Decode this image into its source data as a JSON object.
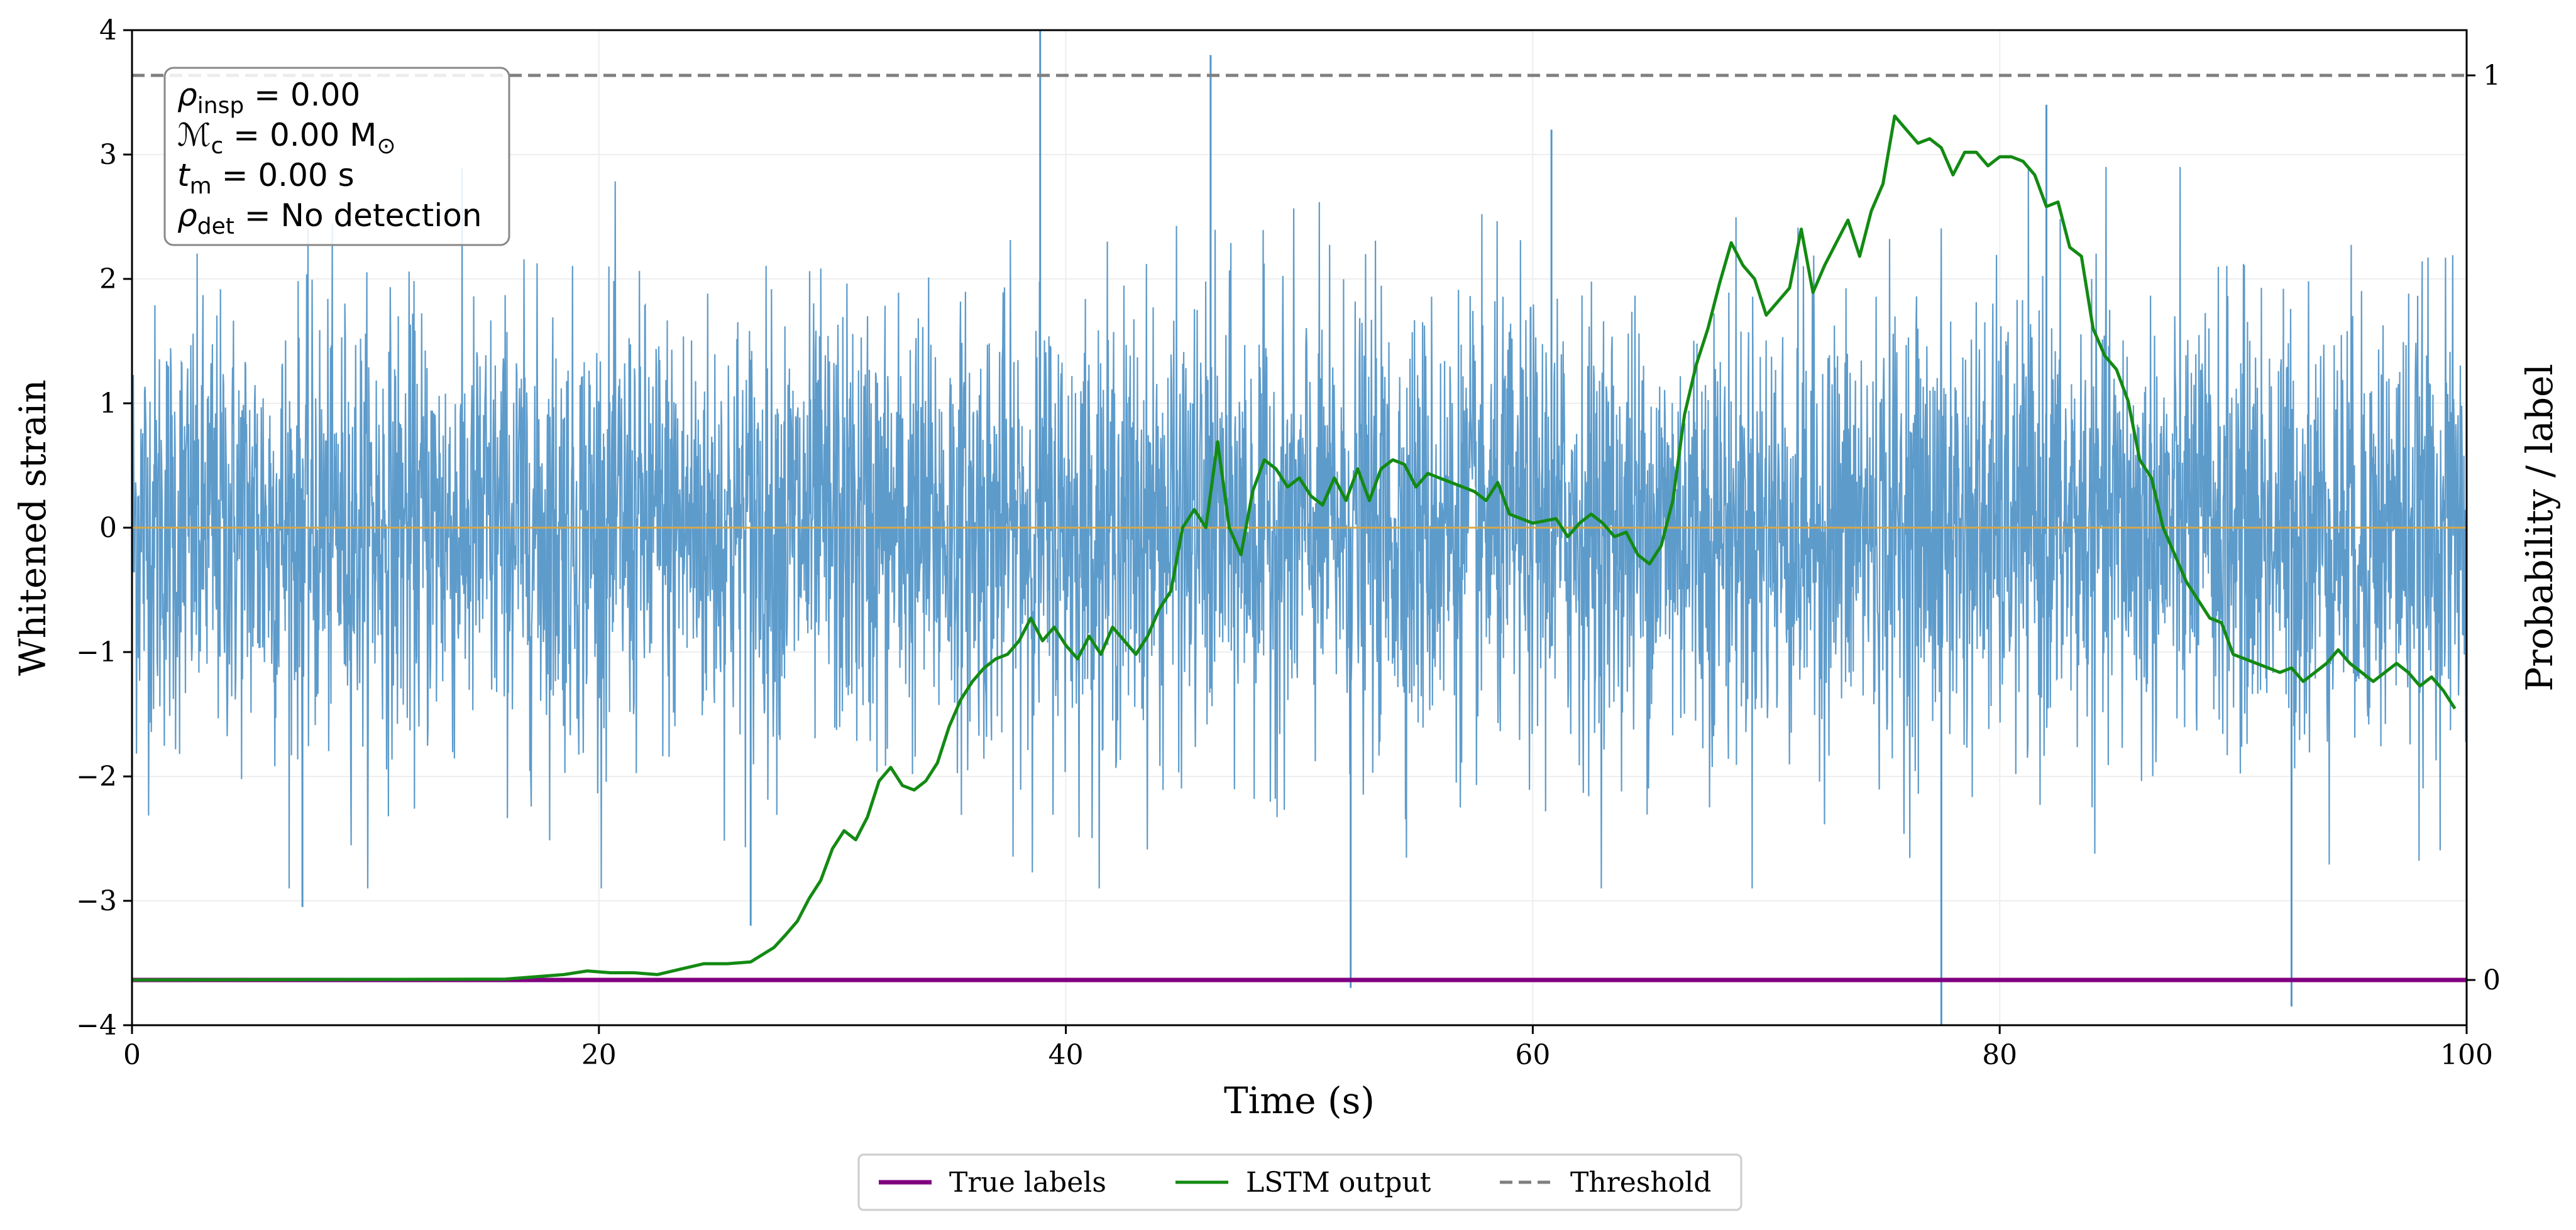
{
  "chart_data": {
    "type": "line",
    "x_axis": {
      "label": "Time (s)",
      "range": [
        0,
        100
      ],
      "ticks": [
        0,
        20,
        40,
        60,
        80,
        100
      ]
    },
    "y_axis_left": {
      "label": "Whitened strain",
      "range": [
        -4,
        4
      ],
      "ticks": [
        -4,
        -3,
        -2,
        -1,
        0,
        1,
        2,
        3,
        4
      ],
      "tick_labels": [
        "−4",
        "−3",
        "−2",
        "−1",
        "0",
        "1",
        "2",
        "3",
        "4"
      ]
    },
    "y_axis_right": {
      "label": "Probability / label",
      "range": [
        -0.05,
        1.05
      ],
      "ticks": [
        0,
        1
      ],
      "tick_labels": [
        "0",
        "1"
      ]
    },
    "strain": {
      "name": "Whitened strain",
      "color": "#5496c8",
      "typical_amplitude": 2.1,
      "spikes": [
        {
          "x": 38.9,
          "y": 4.0
        },
        {
          "x": 46.2,
          "y": 3.8
        },
        {
          "x": 52.2,
          "y": -3.7
        },
        {
          "x": 77.5,
          "y": -4.0
        },
        {
          "x": 92.5,
          "y": -3.85
        },
        {
          "x": 26.5,
          "y": -3.2
        },
        {
          "x": 7.3,
          "y": -3.05
        },
        {
          "x": 82.0,
          "y": 3.4
        },
        {
          "x": 60.8,
          "y": 3.2
        }
      ]
    },
    "zero_line": {
      "y": 0,
      "color": "#d6a84a"
    },
    "series": [
      {
        "name": "True labels",
        "color": "#800080",
        "axis": "right",
        "x": [
          0,
          100
        ],
        "values": [
          0,
          0
        ]
      },
      {
        "name": "LSTM output",
        "color": "#138a13",
        "axis": "right",
        "x": [
          0,
          16,
          17.5,
          18.5,
          19.5,
          20.5,
          21.5,
          22.5,
          23.5,
          24.5,
          25.5,
          26.5,
          27.5,
          28,
          28.5,
          29,
          29.5,
          30,
          30.5,
          31,
          31.5,
          32,
          32.5,
          33,
          33.5,
          34,
          34.5,
          35,
          35.5,
          36,
          36.5,
          37,
          37.5,
          38,
          38.5,
          39,
          39.5,
          40,
          40.5,
          41,
          41.5,
          42,
          42.5,
          43,
          43.5,
          44,
          44.5,
          45,
          45.5,
          46,
          46.5,
          47,
          47.5,
          48,
          48.5,
          49,
          49.5,
          50,
          50.5,
          51,
          51.5,
          52,
          52.5,
          53,
          53.5,
          54,
          54.5,
          55,
          55.5,
          56,
          56.5,
          57,
          57.5,
          58,
          58.5,
          59,
          60,
          61,
          61.5,
          62,
          62.5,
          63,
          63.5,
          64,
          64.5,
          65,
          65.5,
          66,
          66.5,
          67,
          67.5,
          68,
          68.5,
          69,
          69.5,
          70,
          70.5,
          71,
          71.5,
          72,
          72.5,
          73,
          73.5,
          74,
          74.5,
          75,
          75.5,
          76,
          76.5,
          77,
          77.5,
          78,
          78.5,
          79,
          79.5,
          80,
          80.5,
          81,
          81.5,
          82,
          82.5,
          83,
          83.5,
          84,
          84.5,
          85,
          85.5,
          86,
          86.5,
          87,
          87.5,
          88,
          88.5,
          89,
          89.5,
          90,
          90.5,
          91,
          91.5,
          92,
          92.5,
          93,
          93.5,
          94,
          94.5,
          95,
          95.5,
          96,
          96.5,
          97,
          97.5,
          98,
          98.5,
          99,
          99.5
        ],
        "values": [
          0,
          0.001,
          0.004,
          0.006,
          0.01,
          0.008,
          0.008,
          0.006,
          0.012,
          0.018,
          0.018,
          0.02,
          0.036,
          0.05,
          0.065,
          0.09,
          0.11,
          0.145,
          0.165,
          0.155,
          0.18,
          0.22,
          0.235,
          0.215,
          0.21,
          0.22,
          0.24,
          0.28,
          0.31,
          0.33,
          0.345,
          0.355,
          0.36,
          0.375,
          0.4,
          0.375,
          0.39,
          0.37,
          0.355,
          0.38,
          0.36,
          0.39,
          0.375,
          0.36,
          0.38,
          0.41,
          0.43,
          0.5,
          0.52,
          0.5,
          0.595,
          0.5,
          0.47,
          0.54,
          0.575,
          0.565,
          0.545,
          0.555,
          0.535,
          0.525,
          0.555,
          0.53,
          0.565,
          0.53,
          0.565,
          0.575,
          0.57,
          0.545,
          0.56,
          0.555,
          0.55,
          0.545,
          0.54,
          0.53,
          0.55,
          0.515,
          0.505,
          0.51,
          0.49,
          0.505,
          0.515,
          0.505,
          0.49,
          0.495,
          0.47,
          0.46,
          0.48,
          0.53,
          0.625,
          0.68,
          0.72,
          0.77,
          0.815,
          0.79,
          0.775,
          0.735,
          0.75,
          0.765,
          0.83,
          0.76,
          0.79,
          0.815,
          0.84,
          0.8,
          0.85,
          0.88,
          0.955,
          0.94,
          0.925,
          0.93,
          0.92,
          0.89,
          0.915,
          0.915,
          0.9,
          0.91,
          0.91,
          0.905,
          0.89,
          0.855,
          0.86,
          0.81,
          0.8,
          0.72,
          0.69,
          0.675,
          0.64,
          0.575,
          0.555,
          0.5,
          0.47,
          0.44,
          0.42,
          0.4,
          0.395,
          0.36,
          0.355,
          0.35,
          0.345,
          0.34,
          0.345,
          0.33,
          0.34,
          0.35,
          0.365,
          0.35,
          0.34,
          0.33,
          0.34,
          0.35,
          0.34,
          0.325,
          0.335,
          0.32,
          0.3
        ]
      },
      {
        "name": "Threshold",
        "color": "#7f7f7f",
        "axis": "right",
        "style": "dashed",
        "x": [
          0,
          100
        ],
        "values": [
          1,
          1
        ]
      }
    ],
    "info_box": [
      {
        "sym": "ρ",
        "sub": "insp",
        "text": " = 0.00"
      },
      {
        "sym": "ℳ",
        "sub": "c",
        "text": " = 0.00 M",
        "extra_sub": "⊙"
      },
      {
        "sym": "t",
        "sub": "m",
        "text": " = 0.00 s"
      },
      {
        "sym": "ρ",
        "sub": "det",
        "text": " = No detection"
      }
    ],
    "legend": {
      "placement": "bottom-center",
      "entries": [
        "True labels",
        "LSTM output",
        "Threshold"
      ]
    }
  }
}
